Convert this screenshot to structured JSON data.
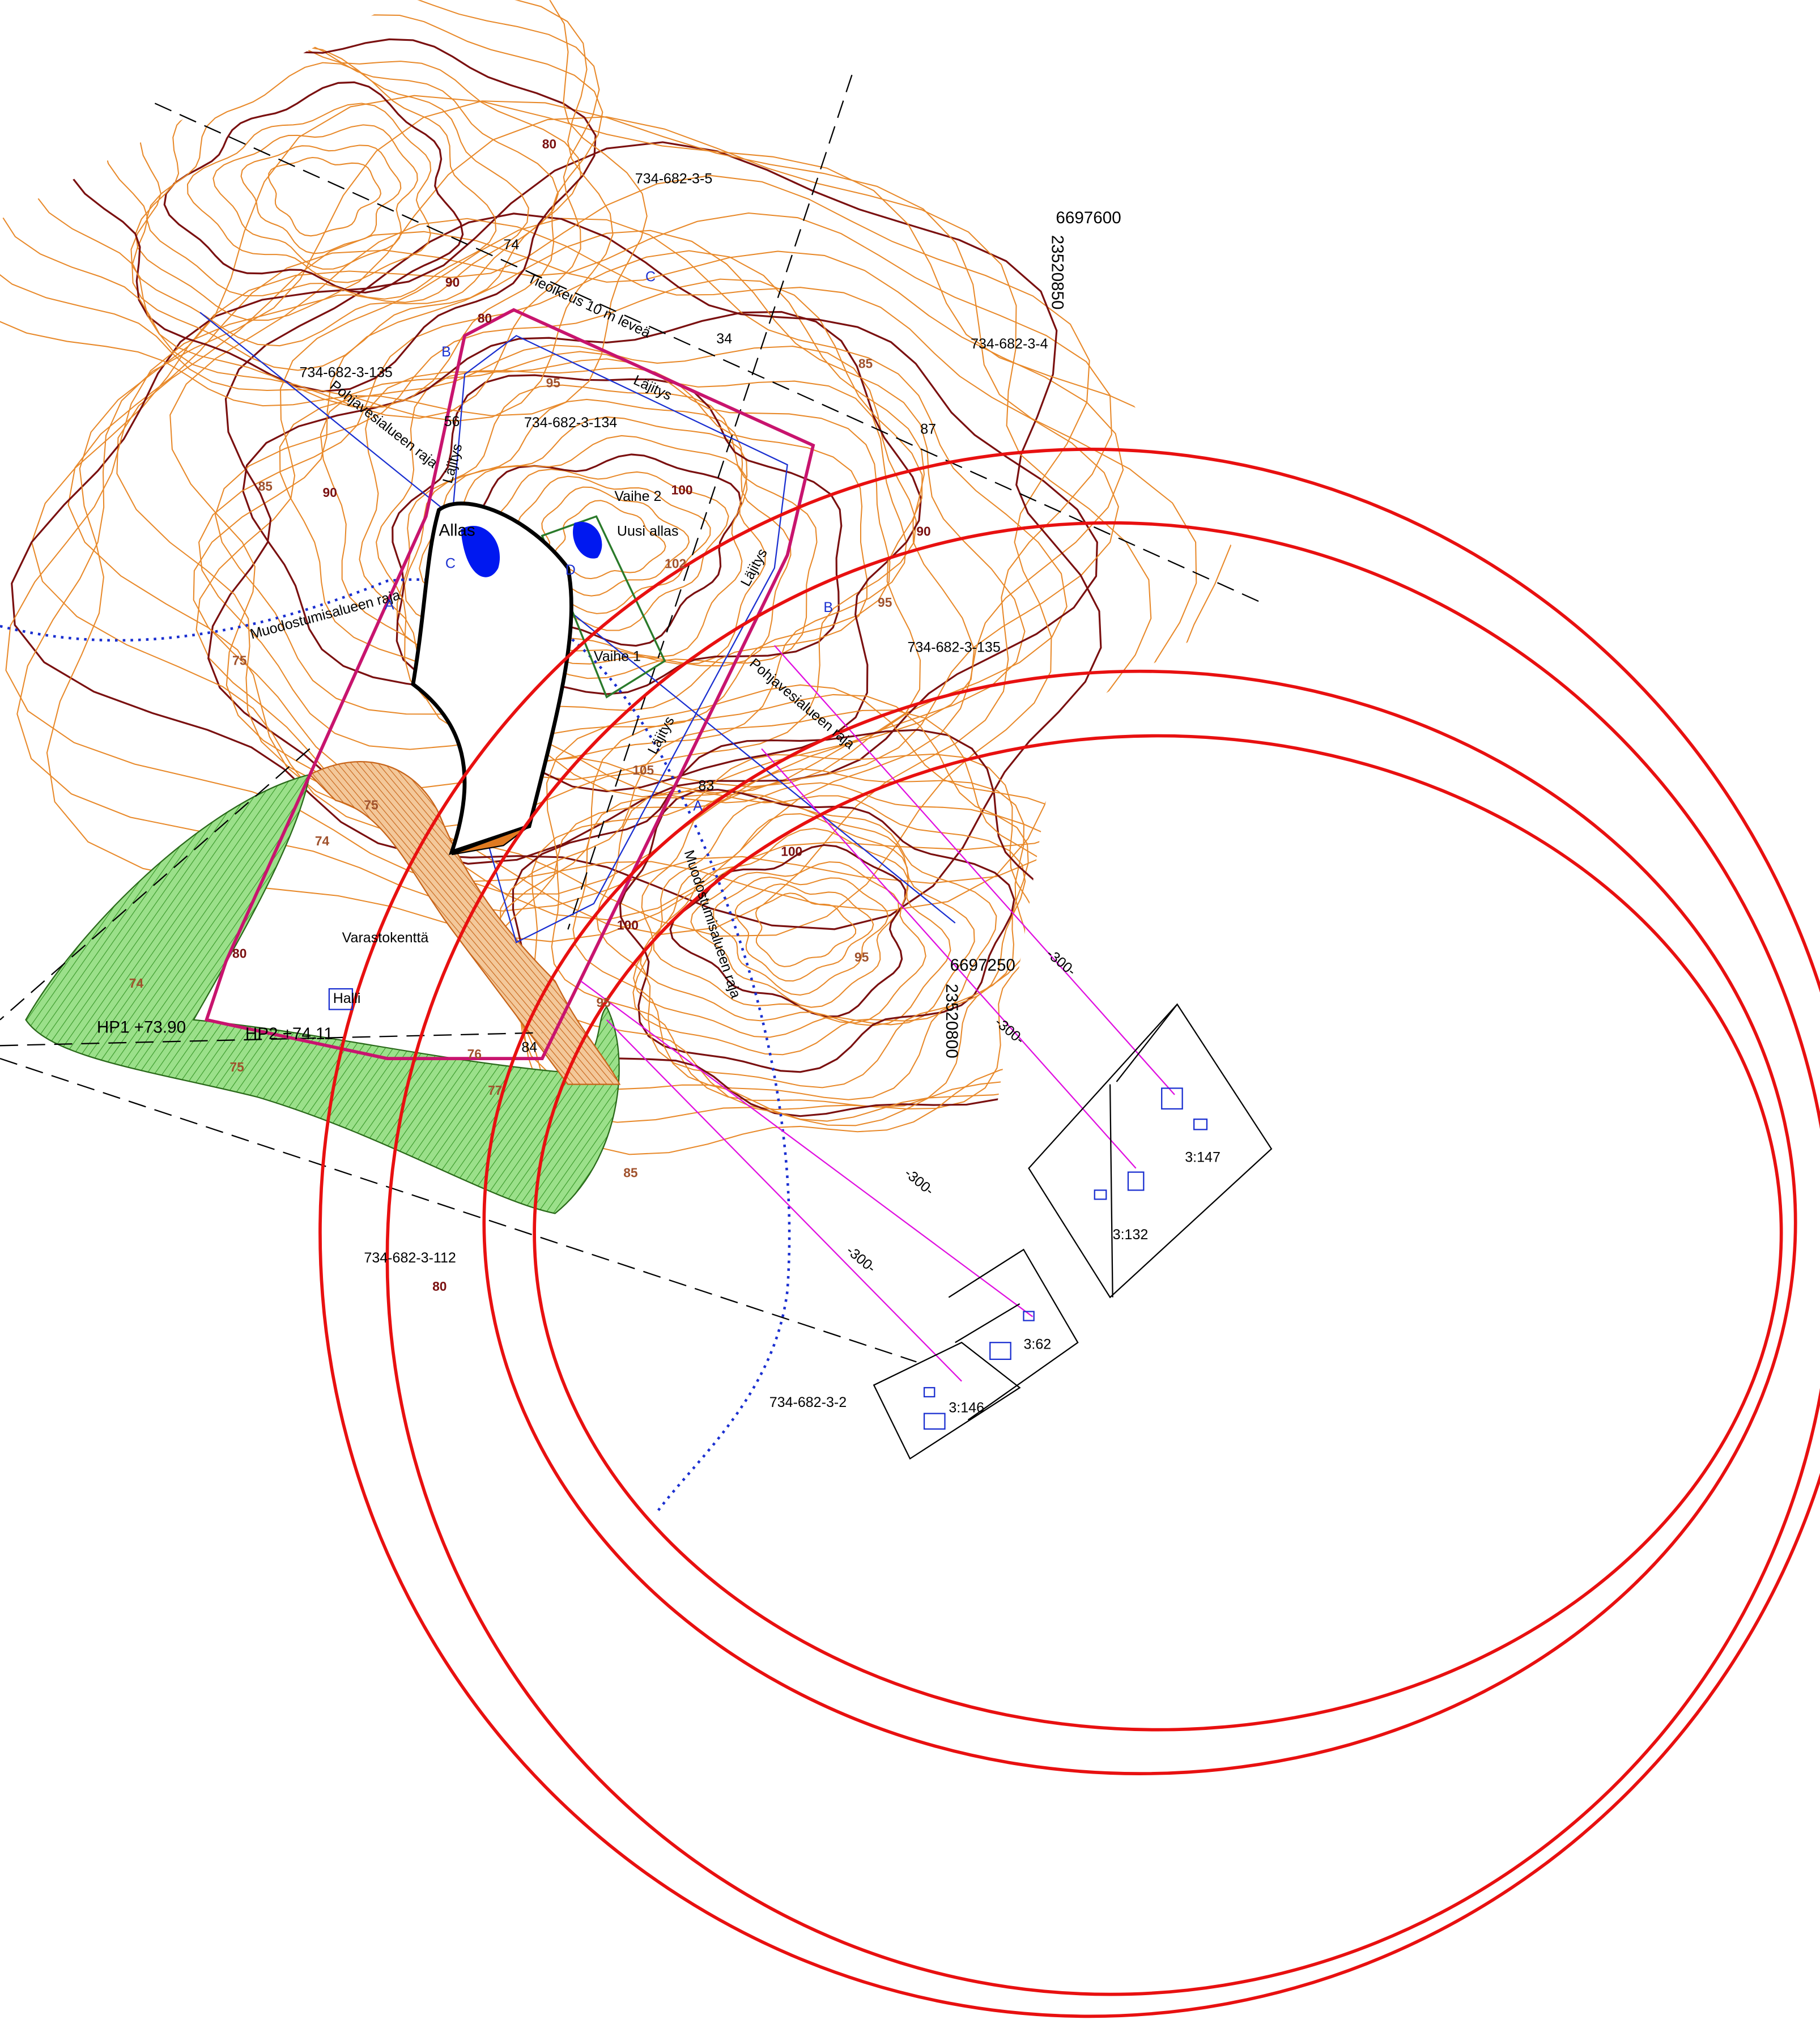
{
  "parcels": [
    "734-682-3-5",
    "734-682-3-4",
    "734-682-3-135",
    "734-682-3-134",
    "734-682-3-135",
    "734-682-3-112",
    "734-682-3-2"
  ],
  "properties": [
    "3:147",
    "3:132",
    "3:62",
    "3:146"
  ],
  "coordinates": [
    {
      "north": "6697600",
      "east": "23520850"
    },
    {
      "north": "6697250",
      "east": "23520800"
    }
  ],
  "features": {
    "allas": "Allas",
    "uusi_allas": "Uusi allas",
    "vaihe_1": "Vaihe 1",
    "vaihe_2": "Vaihe 2",
    "storage": "Varastokenttä",
    "hall": "Halli"
  },
  "lines": {
    "road": "Tieoikeus 10 m leveä",
    "groundwater": "Pohjavesialueen raja",
    "formation": "Muodostumisalueen raja",
    "dump": "Läjitys"
  },
  "points": [
    "HP1 +73.90",
    "HP2 +74.11"
  ],
  "elevations": [
    "74",
    "34",
    "87",
    "56",
    "83",
    "84"
  ],
  "distance": "-300-",
  "sections": [
    "A",
    "B",
    "C",
    "D"
  ],
  "contours": [
    "80",
    "90",
    "85",
    "95",
    "100",
    "102",
    "105",
    "75",
    "74",
    "77",
    "76"
  ]
}
